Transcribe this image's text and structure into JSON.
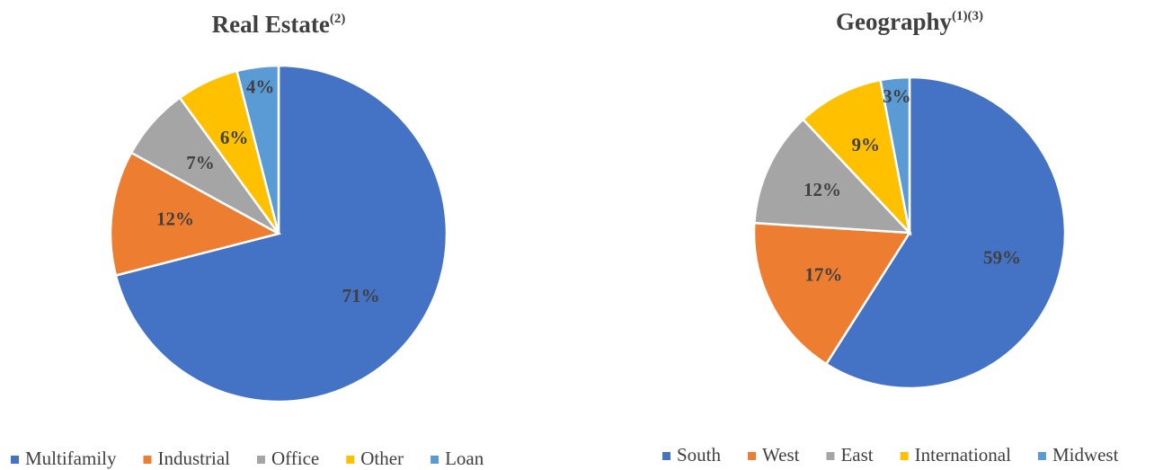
{
  "chart_data": [
    {
      "type": "pie",
      "title": "Real Estate",
      "title_note": "(2)",
      "categories": [
        "Multifamily",
        "Industrial",
        "Office",
        "Other",
        "Loan"
      ],
      "values": [
        71,
        12,
        7,
        6,
        4
      ],
      "value_labels": [
        "71%",
        "12%",
        "7%",
        "6%",
        "4%"
      ],
      "colors": [
        "#4472c4",
        "#ed7d31",
        "#a5a5a5",
        "#ffc000",
        "#5b9bd5"
      ],
      "legend": "bottom"
    },
    {
      "type": "pie",
      "title": "Geography",
      "title_note": "(1)(3)",
      "categories": [
        "South",
        "West",
        "East",
        "International",
        "Midwest"
      ],
      "values": [
        59,
        17,
        12,
        9,
        3
      ],
      "value_labels": [
        "59%",
        "17%",
        "12%",
        "9%",
        "3%"
      ],
      "colors": [
        "#4472c4",
        "#ed7d31",
        "#a5a5a5",
        "#ffc000",
        "#5b9bd5"
      ],
      "legend": "bottom"
    }
  ]
}
